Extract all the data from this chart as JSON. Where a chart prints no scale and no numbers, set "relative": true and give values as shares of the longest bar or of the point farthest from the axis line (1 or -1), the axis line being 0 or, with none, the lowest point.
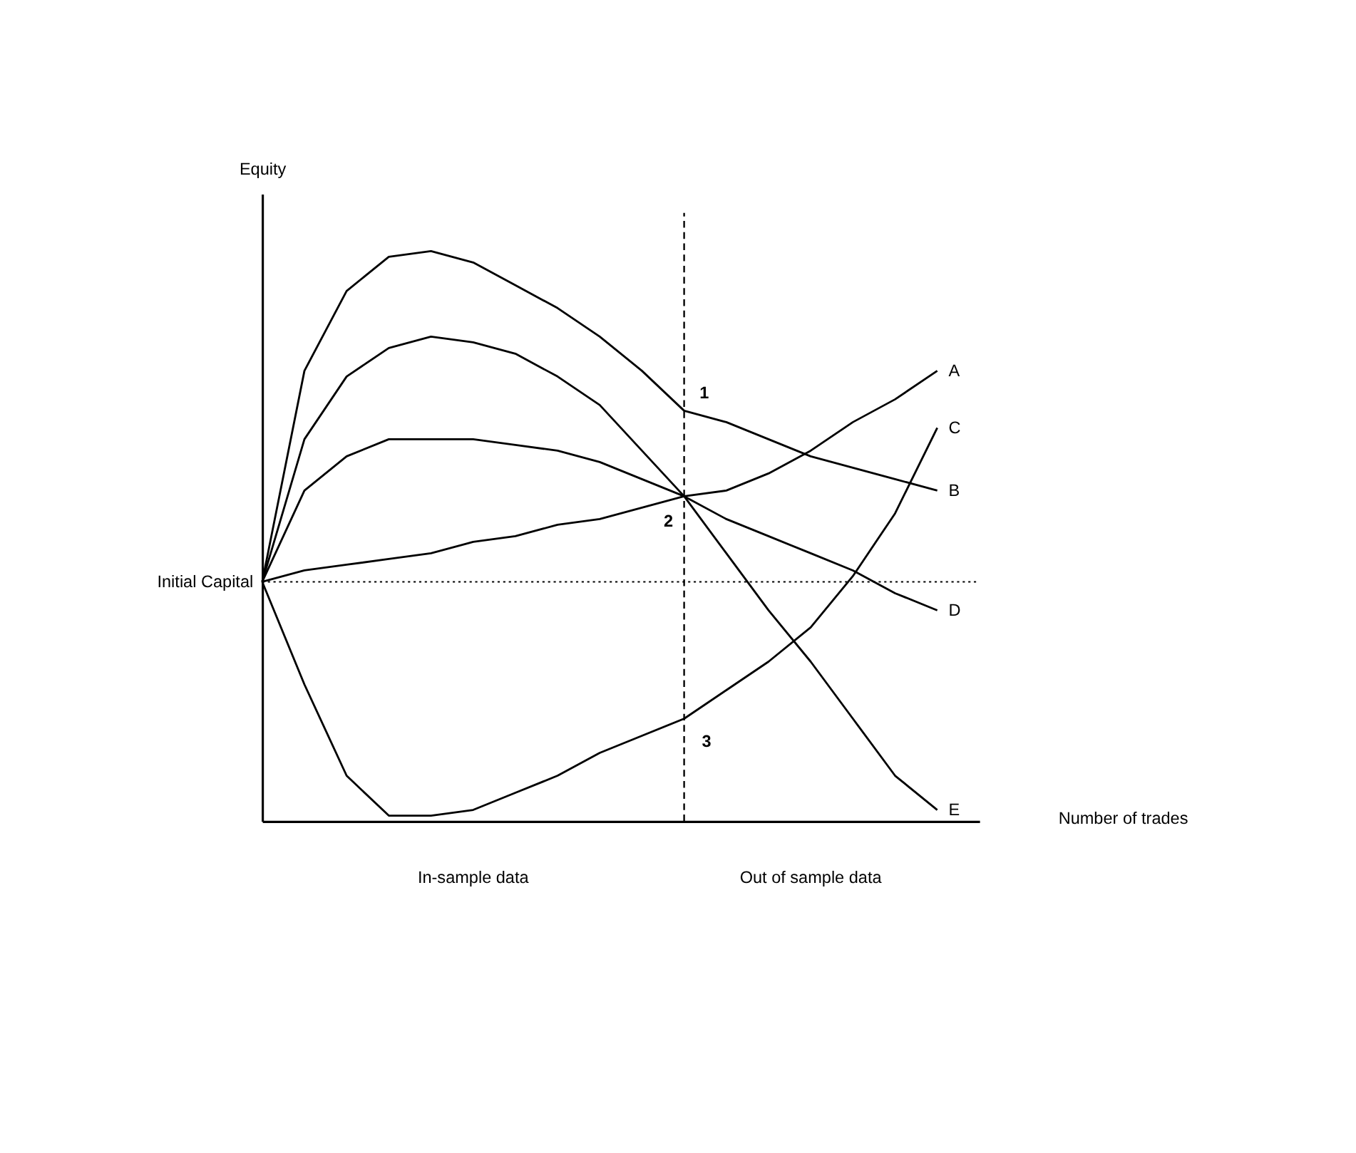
{
  "chart_data": {
    "type": "line",
    "relative": true,
    "xlabel": "Number of trades",
    "ylabel": "Equity",
    "tick_labels": false,
    "legend": false,
    "marker": "none",
    "line_style": "solid",
    "categories": [
      null,
      null,
      null,
      null,
      null,
      null,
      null,
      null,
      null,
      null,
      null,
      null,
      null,
      null,
      null,
      null,
      null
    ],
    "series": [
      {
        "name": "A",
        "color": "#000000",
        "values": [
          0.42,
          0.44,
          0.45,
          0.46,
          0.47,
          0.49,
          0.5,
          0.52,
          0.53,
          0.55,
          0.57,
          0.58,
          0.61,
          0.65,
          0.7,
          0.74,
          0.79
        ]
      },
      {
        "name": "B",
        "color": "#000000",
        "values": [
          0.42,
          0.79,
          0.93,
          0.99,
          1.0,
          0.98,
          0.94,
          0.9,
          0.85,
          0.79,
          0.72,
          0.7,
          0.67,
          0.64,
          0.62,
          0.6,
          0.58
        ]
      },
      {
        "name": "C",
        "color": "#000000",
        "values": [
          0.42,
          0.24,
          0.08,
          0.01,
          0.01,
          0.02,
          0.05,
          0.08,
          0.12,
          0.15,
          0.18,
          0.23,
          0.28,
          0.34,
          0.43,
          0.54,
          0.69
        ]
      },
      {
        "name": "D",
        "color": "#000000",
        "values": [
          0.42,
          0.58,
          0.64,
          0.67,
          0.67,
          0.67,
          0.66,
          0.65,
          0.63,
          0.6,
          0.57,
          0.53,
          0.5,
          0.47,
          0.44,
          0.4,
          0.37
        ]
      },
      {
        "name": "E",
        "color": "#000000",
        "values": [
          0.42,
          0.67,
          0.78,
          0.83,
          0.85,
          0.84,
          0.82,
          0.78,
          0.73,
          0.65,
          0.57,
          0.47,
          0.37,
          0.28,
          0.18,
          0.08,
          0.02
        ]
      }
    ],
    "ref_lines": [
      {
        "axis": "y",
        "value": 0.42,
        "label": "Initial Capital",
        "line_style": "dotted"
      }
    ],
    "annotations": [
      "1",
      "2",
      "3",
      "In-sample data",
      "Out of sample data"
    ]
  }
}
